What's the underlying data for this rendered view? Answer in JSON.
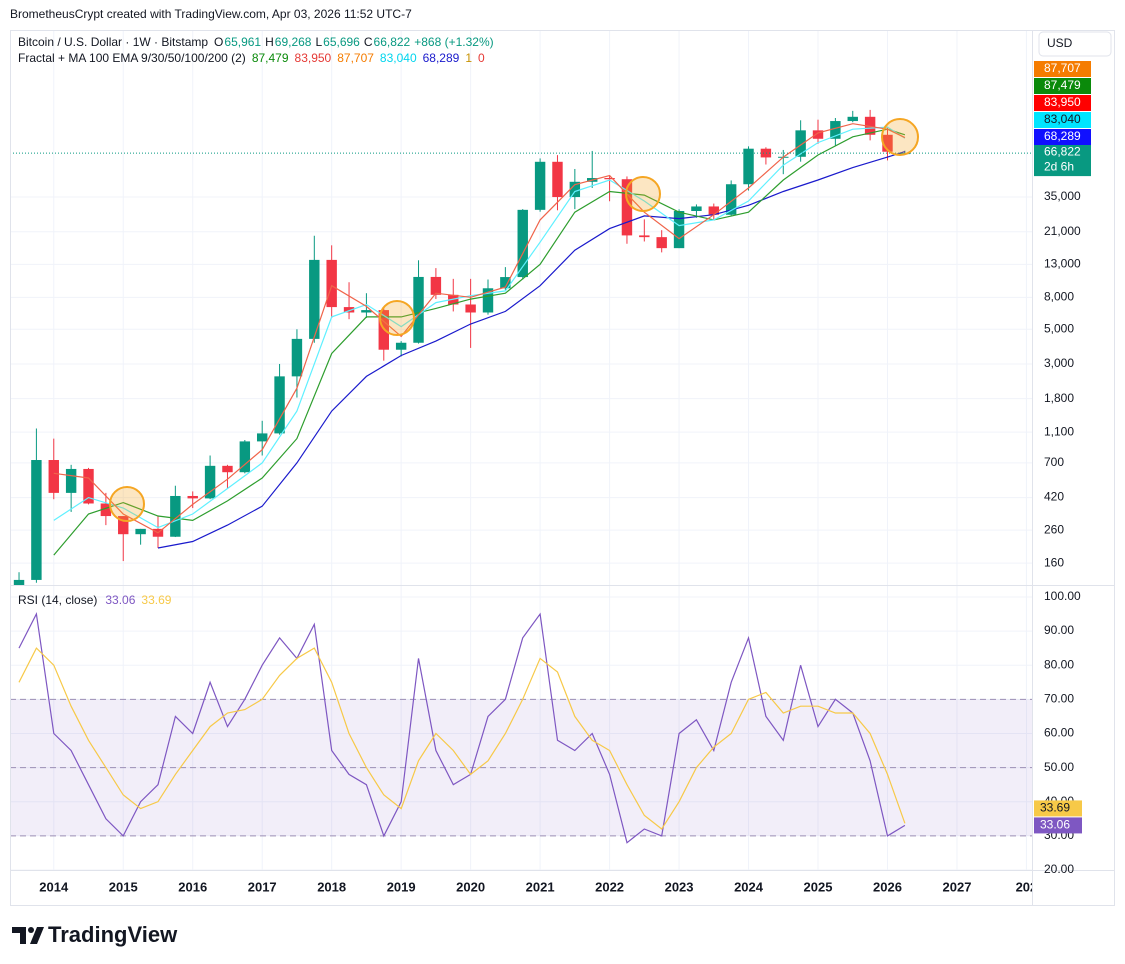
{
  "header": {
    "caption": "BrometheusCrypt created with TradingView.com, Apr 03, 2026 11:52 UTC-7"
  },
  "currency": "USD",
  "brand": "TradingView",
  "chart_data": [
    {
      "type": "candlestick",
      "title": "Bitcoin / U.S. Dollar · 1W · Bitstamp",
      "ohlc": [
        {
          "label": "O",
          "value": "65,961"
        },
        {
          "label": "H",
          "value": "69,268"
        },
        {
          "label": "L",
          "value": "65,696"
        },
        {
          "label": "C",
          "value": "66,822"
        }
      ],
      "change": "+868 (+1.32%)",
      "value_color": "#089981",
      "indicator": {
        "title": "Fractal + MA 100 EMA 9/30/50/100/200 (2)",
        "values": [
          {
            "label": "87,479",
            "color": "#0a8a0a"
          },
          {
            "label": "83,950",
            "color": "#e53935"
          },
          {
            "label": "87,707",
            "color": "#f57c00"
          },
          {
            "label": "83,040",
            "color": "#00d5ee"
          },
          {
            "label": "68,289",
            "color": "#1a1acc"
          },
          {
            "label": "1",
            "color": "#c79100"
          },
          {
            "label": "0",
            "color": "#e53935"
          }
        ]
      },
      "scale_labels": [
        {
          "label": "87,707",
          "color": "#f57c00"
        },
        {
          "label": "87,479",
          "color": "#0a8a0a"
        },
        {
          "label": "83,950",
          "color": "#ff0000"
        },
        {
          "label": "83,040",
          "color": "#00e5ff"
        },
        {
          "label": "68,289",
          "color": "#1010ff"
        }
      ],
      "last_price": {
        "value": 66822,
        "label": "66,822",
        "countdown": "2d 6h",
        "color": "#089981"
      },
      "up_color": "#089981",
      "down_color": "#f23645",
      "x": [
        2013.5,
        2013.75,
        2014,
        2014.25,
        2014.5,
        2014.75,
        2015,
        2015.25,
        2015.5,
        2015.75,
        2016,
        2016.25,
        2016.5,
        2016.75,
        2017,
        2017.25,
        2017.5,
        2017.75,
        2018,
        2018.25,
        2018.5,
        2018.75,
        2019,
        2019.25,
        2019.5,
        2019.75,
        2020,
        2020.25,
        2020.5,
        2020.75,
        2021,
        2021.25,
        2021.5,
        2021.75,
        2022,
        2022.25,
        2022.5,
        2022.75,
        2023,
        2023.25,
        2023.5,
        2023.75,
        2024,
        2024.25,
        2024.5,
        2024.75,
        2025,
        2025.25,
        2025.5,
        2025.75,
        2026,
        2026.25
      ],
      "open": [
        97,
        125,
        730,
        450,
        640,
        385,
        320,
        245,
        265,
        236,
        430,
        415,
        670,
        610,
        960,
        1080,
        2500,
        4340,
        13880,
        6930,
        6400,
        6630,
        3700,
        4100,
        10800,
        8300,
        7200,
        6400,
        9140,
        10780,
        28990,
        58800,
        35000,
        43800,
        46300,
        45500,
        19900,
        19400,
        16500,
        28500,
        30470,
        26970,
        42260,
        71300,
        62700,
        63300,
        93400,
        82500,
        107100,
        114000,
        87500,
        65961
      ],
      "high": [
        140,
        1160,
        1000,
        680,
        650,
        450,
        320,
        265,
        320,
        500,
        460,
        780,
        680,
        980,
        1300,
        3000,
        5000,
        19800,
        17200,
        9990,
        8500,
        6800,
        4200,
        13800,
        12300,
        10500,
        10500,
        10400,
        12480,
        29300,
        61800,
        64850,
        52900,
        69000,
        48200,
        47400,
        25200,
        21500,
        29200,
        31400,
        31800,
        44700,
        73800,
        72800,
        70000,
        108300,
        109300,
        112000,
        124400,
        126200,
        97900,
        69268
      ],
      "low": [
        65,
        120,
        410,
        340,
        380,
        280,
        165,
        210,
        200,
        235,
        360,
        410,
        480,
        600,
        780,
        1060,
        1830,
        4100,
        5900,
        5800,
        5900,
        3150,
        3350,
        4050,
        7800,
        6500,
        3800,
        6200,
        8900,
        10400,
        28200,
        28800,
        29300,
        40000,
        32900,
        17600,
        18200,
        15500,
        16500,
        25800,
        24900,
        26600,
        38500,
        56500,
        49000,
        58900,
        76600,
        74400,
        105300,
        80600,
        60000,
        65696
      ],
      "close": [
        125,
        730,
        450,
        640,
        385,
        320,
        245,
        265,
        236,
        430,
        415,
        670,
        610,
        960,
        1080,
        2500,
        4340,
        13880,
        6930,
        6400,
        6630,
        3700,
        4100,
        10800,
        8300,
        7200,
        6400,
        9140,
        10780,
        28990,
        58800,
        35000,
        43800,
        46300,
        45500,
        19900,
        19400,
        16500,
        28500,
        30470,
        26970,
        42260,
        71300,
        62700,
        63300,
        93400,
        82500,
        107100,
        114000,
        87500,
        68200,
        66822
      ],
      "lines": [
        {
          "color": "#1a1acc",
          "x": [
            2015.5,
            2016,
            2016.5,
            2017,
            2017.5,
            2018,
            2018.5,
            2019,
            2019.5,
            2020,
            2020.5,
            2021,
            2021.5,
            2022,
            2022.5,
            2023,
            2023.5,
            2024,
            2024.5,
            2025,
            2025.5,
            2026,
            2026.25
          ],
          "values": [
            200,
            220,
            280,
            370,
            700,
            1500,
            2500,
            3400,
            4200,
            5400,
            6500,
            9500,
            16000,
            22000,
            26500,
            25500,
            27000,
            31000,
            38000,
            45000,
            54000,
            63000,
            68289
          ]
        },
        {
          "color": "#2e9e2e",
          "x": [
            2014,
            2014.5,
            2015,
            2015.5,
            2016,
            2016.5,
            2017,
            2017.5,
            2018,
            2018.5,
            2019,
            2019.5,
            2020,
            2020.5,
            2021,
            2021.5,
            2022,
            2022.5,
            2023,
            2023.5,
            2024,
            2024.5,
            2025,
            2025.5,
            2026,
            2026.25
          ],
          "values": [
            180,
            330,
            390,
            320,
            300,
            400,
            560,
            1000,
            3500,
            6000,
            6000,
            6800,
            7800,
            8500,
            13000,
            28000,
            38000,
            36000,
            28000,
            25000,
            28000,
            45000,
            65000,
            85000,
            95000,
            87479
          ]
        },
        {
          "color": "#5ff0ff",
          "x": [
            2014,
            2014.5,
            2015,
            2015.5,
            2016,
            2016.5,
            2017,
            2017.5,
            2018,
            2018.5,
            2019,
            2019.5,
            2020,
            2020.5,
            2021,
            2021.5,
            2022,
            2022.5,
            2023,
            2023.5,
            2024,
            2024.5,
            2025,
            2025.5,
            2026,
            2026.25
          ],
          "values": [
            300,
            420,
            360,
            270,
            330,
            480,
            700,
            1500,
            6000,
            7200,
            5200,
            7400,
            8200,
            8800,
            18000,
            38000,
            45000,
            33000,
            23000,
            25000,
            33000,
            56000,
            78000,
            95000,
            98000,
            83040
          ]
        },
        {
          "color": "#f0644a",
          "x": [
            2014,
            2014.5,
            2015,
            2015.5,
            2016,
            2016.5,
            2017,
            2017.5,
            2018,
            2018.5,
            2019,
            2019.5,
            2020,
            2020.5,
            2021,
            2021.5,
            2022,
            2022.5,
            2023,
            2023.5,
            2024,
            2024.5,
            2025,
            2025.5,
            2026,
            2026.25
          ],
          "values": [
            600,
            560,
            330,
            250,
            380,
            550,
            850,
            2100,
            9500,
            7000,
            4500,
            8500,
            8000,
            9300,
            25000,
            42000,
            48000,
            28000,
            19000,
            27000,
            40000,
            63000,
            90000,
            103000,
            95000,
            83950
          ]
        }
      ],
      "xlim": [
        2013.37,
        2028.08
      ],
      "ylim": [
        116,
        409000
      ],
      "log_scale": true,
      "grid": true,
      "yticks": [
        {
          "value": 160,
          "label": "160"
        },
        {
          "value": 260,
          "label": "260"
        },
        {
          "value": 420,
          "label": "420"
        },
        {
          "value": 700,
          "label": "700"
        },
        {
          "value": 1100,
          "label": "1,100"
        },
        {
          "value": 1800,
          "label": "1,800"
        },
        {
          "value": 3000,
          "label": "3,000"
        },
        {
          "value": 5000,
          "label": "5,000"
        },
        {
          "value": 8000,
          "label": "8,000"
        },
        {
          "value": 13000,
          "label": "13,000"
        },
        {
          "value": 21000,
          "label": "21,000"
        },
        {
          "value": 35000,
          "label": "35,000"
        }
      ]
    },
    {
      "type": "line",
      "title": "RSI (14, close)",
      "x": [
        2013.5,
        2013.75,
        2014,
        2014.25,
        2014.5,
        2014.75,
        2015,
        2015.25,
        2015.5,
        2015.75,
        2016,
        2016.25,
        2016.5,
        2016.75,
        2017,
        2017.25,
        2017.5,
        2017.75,
        2018,
        2018.25,
        2018.5,
        2018.75,
        2019,
        2019.25,
        2019.5,
        2019.75,
        2020,
        2020.25,
        2020.5,
        2020.75,
        2021,
        2021.25,
        2021.5,
        2021.75,
        2022,
        2022.25,
        2022.5,
        2022.75,
        2023,
        2023.25,
        2023.5,
        2023.75,
        2024,
        2024.25,
        2024.5,
        2024.75,
        2025,
        2025.25,
        2025.5,
        2025.75,
        2026,
        2026.25
      ],
      "series": [
        {
          "color": "#7e57c2",
          "value_label": "33.06",
          "values": [
            85,
            95,
            60,
            55,
            45,
            35,
            30,
            40,
            45,
            65,
            60,
            75,
            62,
            70,
            80,
            88,
            82,
            92,
            55,
            48,
            45,
            30,
            40,
            82,
            55,
            45,
            48,
            65,
            70,
            88,
            95,
            58,
            55,
            60,
            48,
            28,
            32,
            30,
            60,
            64,
            55,
            75,
            88,
            65,
            58,
            80,
            62,
            70,
            66,
            52,
            30,
            33.06
          ]
        },
        {
          "color": "#f7c948",
          "value_label": "33.69",
          "values": [
            75,
            85,
            80,
            68,
            58,
            50,
            42,
            38,
            40,
            48,
            55,
            62,
            66,
            67,
            70,
            77,
            82,
            85,
            75,
            60,
            50,
            42,
            38,
            52,
            60,
            55,
            48,
            52,
            60,
            70,
            82,
            78,
            65,
            58,
            55,
            45,
            36,
            32,
            40,
            50,
            56,
            60,
            70,
            72,
            66,
            68,
            68,
            66,
            66,
            60,
            48,
            33.69
          ]
        }
      ],
      "band": [
        30,
        70
      ],
      "band_color": "#7e57c2",
      "levels": [
        70,
        50,
        30
      ],
      "xlim": [
        2013.37,
        2028.08
      ],
      "ylim": [
        20,
        103.5
      ],
      "grid": true,
      "xticks": [
        2014,
        2015,
        2016,
        2017,
        2018,
        2019,
        2020,
        2021,
        2022,
        2023,
        2024,
        2025,
        2026,
        2027,
        {
          "value": 2028,
          "label": "202"
        }
      ],
      "yticks": [
        {
          "value": 20,
          "label": "20.00"
        },
        {
          "value": 30,
          "label": "30.00"
        },
        {
          "value": 40,
          "label": "40.00"
        },
        {
          "value": 50,
          "label": "50.00"
        },
        {
          "value": 60,
          "label": "60.00"
        },
        {
          "value": 70,
          "label": "70.00"
        },
        {
          "value": 80,
          "label": "80.00"
        },
        {
          "value": 90,
          "label": "90.00"
        },
        {
          "value": 100,
          "label": "100.00"
        }
      ]
    }
  ]
}
